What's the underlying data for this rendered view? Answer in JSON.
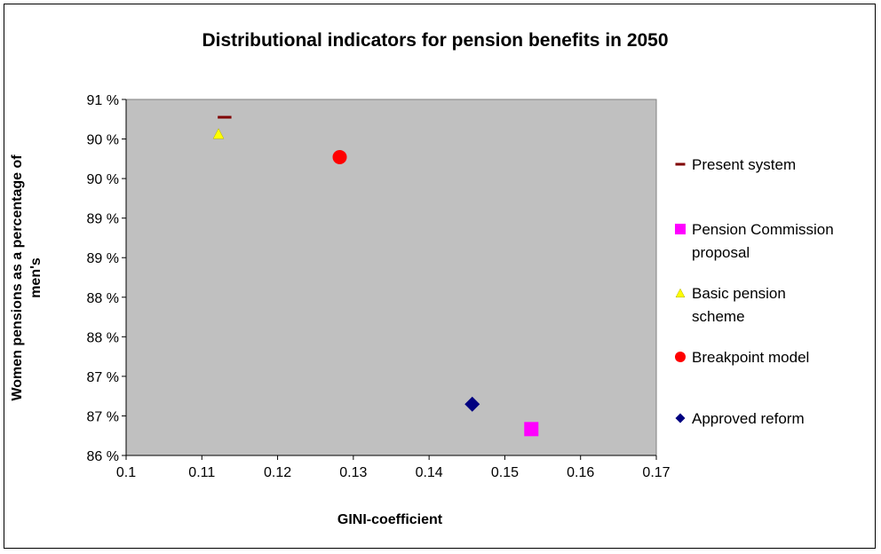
{
  "chart_data": {
    "type": "scatter",
    "title": "Distributional indicators for pension benefits in 2050",
    "xlabel": "GINI-coefficient",
    "ylabel_lines": [
      "Women pensions as a percentage of",
      "men's"
    ],
    "xlim": [
      0.1,
      0.17
    ],
    "ylim": [
      0.86,
      0.91
    ],
    "x_ticks": [
      "0.1",
      "0.11",
      "0.12",
      "0.13",
      "0.14",
      "0.15",
      "0.16",
      "0.17"
    ],
    "y_ticks": [
      "86 %",
      "87 %",
      "87 %",
      "88 %",
      "88 %",
      "89 %",
      "89 %",
      "90 %",
      "90 %",
      "91 %"
    ],
    "grid": false,
    "plot_background": "#c0c0c0",
    "legend_position": "right",
    "series": [
      {
        "name": "Present system",
        "marker": "dash",
        "color": "#800000",
        "x": 0.113,
        "y": 0.9075,
        "legend_lines": [
          "Present system"
        ]
      },
      {
        "name": "Pension Commission proposal",
        "marker": "square",
        "color": "#ff00ff",
        "x": 0.1535,
        "y": 0.8637,
        "legend_lines": [
          "Pension Commission",
          "proposal"
        ]
      },
      {
        "name": "Basic pension scheme",
        "marker": "triangle",
        "color": "#ffff00",
        "x": 0.1122,
        "y": 0.9052,
        "legend_lines": [
          "Basic pension",
          "scheme"
        ]
      },
      {
        "name": "Breakpoint model",
        "marker": "circle",
        "color": "#ff0000",
        "x": 0.1282,
        "y": 0.9019,
        "legend_lines": [
          "Breakpoint model"
        ]
      },
      {
        "name": "Approved reform",
        "marker": "diamond",
        "color": "#000080",
        "x": 0.1457,
        "y": 0.8672,
        "legend_lines": [
          "Approved reform"
        ]
      }
    ]
  }
}
